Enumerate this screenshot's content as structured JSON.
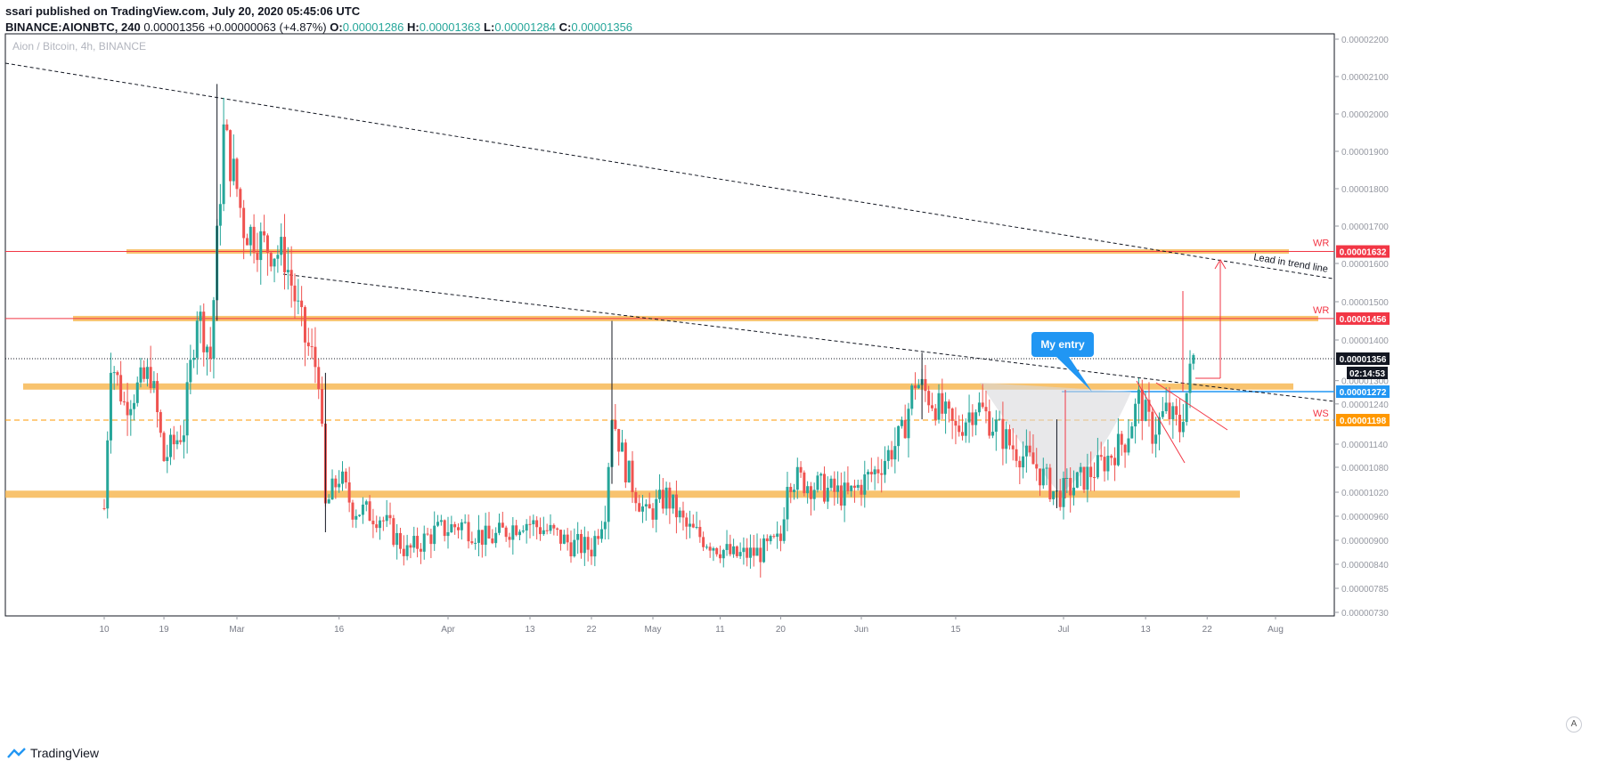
{
  "header": {
    "published": "ssari published on TradingView.com, July 20, 2020 05:45:06 UTC",
    "symbol": "BINANCE:AIONBTC, 240",
    "last": "0.00001356",
    "change": "+0.00000063 (+4.87%)",
    "o_label": "O:",
    "o_value": "0.00001286",
    "h_label": "H:",
    "h_value": "0.00001363",
    "l_label": "L:",
    "l_value": "0.00001284",
    "c_label": "C:",
    "c_value": "0.00001356"
  },
  "footer": {
    "brand": "TradingView",
    "auto_button": "A"
  },
  "chart_data": {
    "type": "candlestick",
    "title": "Aion / Bitcoin, 4h, BINANCE",
    "y_range": [
      7.15e-06,
      2.21e-05
    ],
    "y_ticks": [
      "0.00002200",
      "0.00002100",
      "0.00002000",
      "0.00001900",
      "0.00001800",
      "0.00001700",
      "0.00001600",
      "0.00001500",
      "0.00001400",
      "0.00001300",
      "0.00001240",
      "0.00001140",
      "0.00001080",
      "0.00001020",
      "0.00000960",
      "0.00000900",
      "0.00000840",
      "0.00000785",
      "0.00000730"
    ],
    "x_ticks": [
      "10",
      "19",
      "Mar",
      "16",
      "Apr",
      "13",
      "22",
      "May",
      "11",
      "20",
      "Jun",
      "15",
      "Jul",
      "13",
      "22",
      "Aug"
    ],
    "series_anchors": [
      {
        "t": "Feb 10",
        "v": 9.8e-06
      },
      {
        "t": "Feb 11",
        "v": 1.36e-05
      },
      {
        "t": "Feb 13",
        "v": 1.24e-05
      },
      {
        "t": "Feb 17",
        "v": 1.32e-05
      },
      {
        "t": "Feb 19",
        "v": 1.1e-05
      },
      {
        "t": "Feb 22",
        "v": 1.18e-05
      },
      {
        "t": "Feb 24",
        "v": 1.48e-05
      },
      {
        "t": "Feb 26",
        "v": 1.36e-05
      },
      {
        "t": "Feb 28",
        "v": 1.95e-05
      },
      {
        "t": "Mar 1",
        "v": 1.8e-05
      },
      {
        "t": "Mar 2",
        "v": 1.7e-05
      },
      {
        "t": "Mar 5",
        "v": 1.65e-05
      },
      {
        "t": "Mar 8",
        "v": 1.62e-05
      },
      {
        "t": "Mar 11",
        "v": 1.4e-05
      },
      {
        "t": "Mar 13",
        "v": 1.32e-05
      },
      {
        "t": "Mar 14",
        "v": 9.8e-06
      },
      {
        "t": "Mar 16",
        "v": 1.06e-05
      },
      {
        "t": "Mar 18",
        "v": 9.8e-06
      },
      {
        "t": "Mar 22",
        "v": 9.6e-06
      },
      {
        "t": "Mar 26",
        "v": 8.7e-06
      },
      {
        "t": "Mar 30",
        "v": 9.2e-06
      },
      {
        "t": "Apr 3",
        "v": 9.4e-06
      },
      {
        "t": "Apr 7",
        "v": 9e-06
      },
      {
        "t": "Apr 12",
        "v": 9.5e-06
      },
      {
        "t": "Apr 16",
        "v": 9.2e-06
      },
      {
        "t": "Apr 19",
        "v": 8.9e-06
      },
      {
        "t": "Apr 22",
        "v": 8.8e-06
      },
      {
        "t": "Apr 24",
        "v": 9.8e-06
      },
      {
        "t": "Apr 25",
        "v": 1.22e-05
      },
      {
        "t": "Apr 27",
        "v": 1.08e-05
      },
      {
        "t": "Apr 30",
        "v": 9.6e-06
      },
      {
        "t": "May 3",
        "v": 1.01e-05
      },
      {
        "t": "May 6",
        "v": 9.3e-06
      },
      {
        "t": "May 10",
        "v": 8.9e-06
      },
      {
        "t": "May 13",
        "v": 8.6e-06
      },
      {
        "t": "May 17",
        "v": 8.7e-06
      },
      {
        "t": "May 20",
        "v": 9e-06
      },
      {
        "t": "May 21",
        "v": 1.06e-05
      },
      {
        "t": "May 26",
        "v": 1.03e-05
      },
      {
        "t": "May 30",
        "v": 1.01e-05
      },
      {
        "t": "Jun 3",
        "v": 1.07e-05
      },
      {
        "t": "Jun 7",
        "v": 1.16e-05
      },
      {
        "t": "Jun 9",
        "v": 1.3e-05
      },
      {
        "t": "Jun 12",
        "v": 1.24e-05
      },
      {
        "t": "Jun 15",
        "v": 1.17e-05
      },
      {
        "t": "Jun 18",
        "v": 1.24e-05
      },
      {
        "t": "Jun 20",
        "v": 1.2e-05
      },
      {
        "t": "Jun 23",
        "v": 1.14e-05
      },
      {
        "t": "Jun 27",
        "v": 1.08e-05
      },
      {
        "t": "Jun 30",
        "v": 1.01e-05
      },
      {
        "t": "Jul 2",
        "v": 1.03e-05
      },
      {
        "t": "Jul 6",
        "v": 1.08e-05
      },
      {
        "t": "Jul 10",
        "v": 1.15e-05
      },
      {
        "t": "Jul 12",
        "v": 1.25e-05
      },
      {
        "t": "Jul 14",
        "v": 1.17e-05
      },
      {
        "t": "Jul 16",
        "v": 1.22e-05
      },
      {
        "t": "Jul 18",
        "v": 1.18e-05
      },
      {
        "t": "Jul 19",
        "v": 1.27e-05
      },
      {
        "t": "Jul 20",
        "v": 1.356e-05
      }
    ],
    "price_tags": [
      {
        "value": "0.00001632",
        "color": "#f23645"
      },
      {
        "value": "0.00001456",
        "color": "#f23645"
      },
      {
        "value": "0.00001356",
        "color": "#131722"
      },
      {
        "value": "02:14:53",
        "color": "#131722"
      },
      {
        "value": "0.00001272",
        "color": "#2196f3"
      },
      {
        "value": "0.00001198",
        "color": "#ff9800"
      }
    ],
    "annotations": {
      "wr_top": "WR",
      "wr_mid": "WR",
      "ws": "WS",
      "trend_label": "Lead in trend line",
      "callout": "My entry"
    },
    "colors": {
      "up": "#26a69a",
      "down": "#ef5350",
      "zone": "#f7b955",
      "trend": "#131722",
      "blue": "#2196f3",
      "red": "#f23645"
    }
  }
}
